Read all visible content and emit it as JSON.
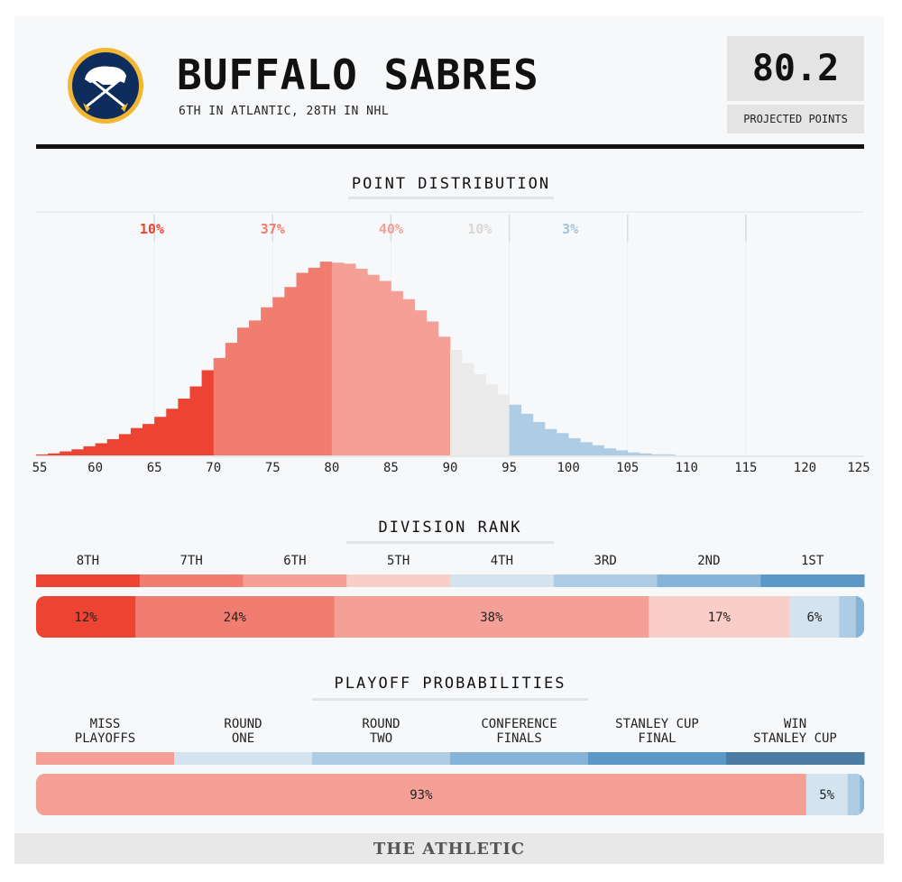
{
  "team": {
    "name": "BUFFALO SABRES",
    "subtitle": "6TH IN ATLANTIC, 28TH IN NHL",
    "logo_icon": "buffalo-sabres-logo-icon"
  },
  "projection": {
    "value": "80.2",
    "label": "PROJECTED POINTS"
  },
  "sections": {
    "distribution_title": "POINT DISTRIBUTION",
    "division_title": "DIVISION RANK",
    "playoff_title": "PLAYOFF PROBABILITIES"
  },
  "footer": {
    "brand": "THE ATHLETIC"
  },
  "colors": {
    "red_dark": "#ec4332",
    "red_mid": "#f07d6f",
    "red_light": "#f5a096",
    "pink": "#f9cdc8",
    "gray": "#ebebeb",
    "blue_pale": "#d3e4f0",
    "blue_light": "#aeccE3",
    "blue_mid": "#86b3d8",
    "blue": "#5b98c8",
    "blue_dark": "#4c7ba3"
  },
  "chart_data": [
    {
      "type": "bar",
      "title": "POINT DISTRIBUTION",
      "xlim": [
        55,
        125
      ],
      "x_ticks": [
        55,
        60,
        65,
        70,
        75,
        80,
        85,
        90,
        95,
        100,
        105,
        110,
        115,
        120,
        125
      ],
      "bins": [
        55,
        56,
        57,
        58,
        59,
        60,
        61,
        62,
        63,
        64,
        65,
        66,
        67,
        68,
        69,
        70,
        71,
        72,
        73,
        74,
        75,
        76,
        77,
        78,
        79,
        80,
        81,
        82,
        83,
        84,
        85,
        86,
        87,
        88,
        89,
        90,
        91,
        92,
        93,
        94,
        95,
        96,
        97,
        98,
        99,
        100,
        101,
        102,
        103,
        104,
        105,
        106,
        107,
        108
      ],
      "values": [
        0.1,
        0.2,
        0.4,
        0.6,
        0.9,
        1.2,
        1.6,
        2.1,
        2.7,
        3.1,
        3.8,
        4.6,
        5.6,
        6.8,
        8.4,
        9.6,
        11.1,
        12.6,
        13.3,
        14.6,
        15.6,
        16.6,
        18.0,
        18.5,
        19.1,
        19.0,
        18.9,
        18.4,
        17.8,
        17.2,
        16.2,
        15.4,
        14.3,
        13.2,
        11.7,
        10.4,
        9.1,
        8.0,
        7.0,
        6.0,
        5.0,
        4.1,
        3.3,
        2.6,
        2.2,
        1.7,
        1.3,
        1.0,
        0.7,
        0.5,
        0.3,
        0.2,
        0.1,
        0.1
      ],
      "ylim": [
        0,
        20
      ],
      "buckets": [
        {
          "label": "10%",
          "from": 55,
          "to": 70,
          "color": "#ec4332"
        },
        {
          "label": "37%",
          "from": 70,
          "to": 80,
          "color": "#f07d6f"
        },
        {
          "label": "40%",
          "from": 80,
          "to": 90,
          "color": "#f5a096"
        },
        {
          "label": "10%",
          "from": 90,
          "to": 95,
          "color": "#d8d8d8"
        },
        {
          "label": "3%",
          "from": 95,
          "to": 125,
          "color": "#9fc3df"
        }
      ],
      "grid": true
    },
    {
      "type": "bar",
      "title": "DIVISION RANK",
      "categories": [
        "8TH",
        "7TH",
        "6TH",
        "5TH",
        "4TH",
        "3RD",
        "2ND",
        "1ST"
      ],
      "category_colors": [
        "#ec4332",
        "#f07d6f",
        "#f5a096",
        "#f9cdc8",
        "#d3e4f0",
        "#aeccE3",
        "#86b3d8",
        "#5b98c8"
      ],
      "values": [
        12,
        24,
        38,
        17,
        6,
        2,
        1,
        0
      ],
      "labels": [
        "12%",
        "24%",
        "38%",
        "17%",
        "6%",
        "",
        "",
        ""
      ]
    },
    {
      "type": "bar",
      "title": "PLAYOFF PROBABILITIES",
      "categories": [
        "MISS PLAYOFFS",
        "ROUND ONE",
        "ROUND TWO",
        "CONFERENCE FINALS",
        "STANLEY CUP FINAL",
        "WIN STANLEY CUP"
      ],
      "category_lines": [
        [
          "MISS",
          "PLAYOFFS"
        ],
        [
          "ROUND",
          "ONE"
        ],
        [
          "ROUND",
          "TWO"
        ],
        [
          "CONFERENCE",
          "FINALS"
        ],
        [
          "STANLEY CUP",
          "FINAL"
        ],
        [
          "WIN",
          "STANLEY CUP"
        ]
      ],
      "category_colors": [
        "#f5a096",
        "#d3e4f0",
        "#aeccE3",
        "#86b3d8",
        "#5b98c8",
        "#4c7ba3"
      ],
      "values": [
        93,
        5,
        1.5,
        0.5,
        0,
        0
      ],
      "labels": [
        "93%",
        "5%",
        "",
        "",
        "",
        ""
      ]
    }
  ]
}
